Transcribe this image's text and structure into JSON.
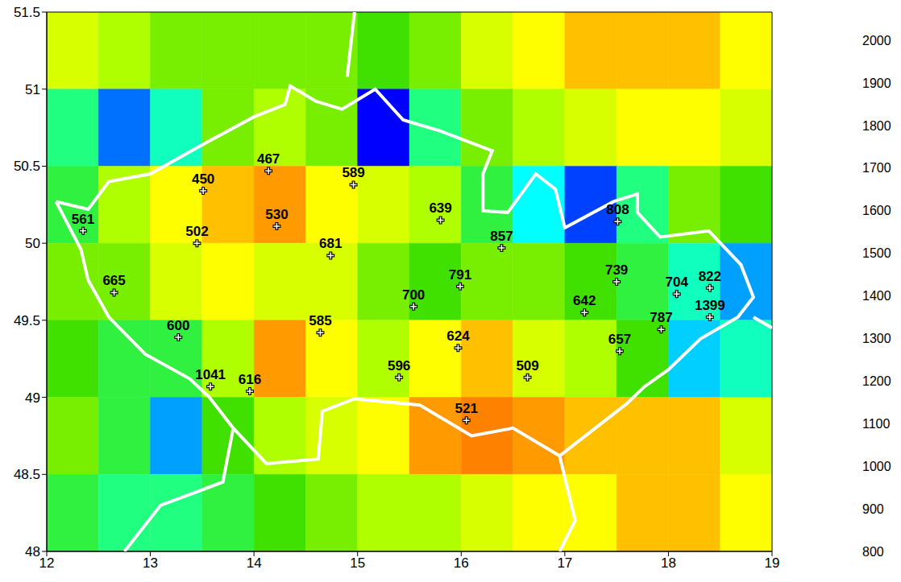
{
  "chart_data": {
    "type": "heatmap_scatter",
    "xlim": [
      12,
      19
    ],
    "xticks": [
      12,
      13,
      14,
      15,
      16,
      17,
      18,
      19
    ],
    "ylim": [
      48,
      51.5
    ],
    "yticks": [
      48,
      48.5,
      49,
      49.5,
      50,
      50.5,
      51,
      51.5
    ],
    "heatmap": {
      "x_edges": [
        12,
        12.5,
        13,
        13.5,
        14,
        14.5,
        15,
        15.5,
        16,
        16.5,
        17,
        17.5,
        18,
        18.5,
        19
      ],
      "y_edges": [
        51.5,
        51,
        50.5,
        50,
        49.5,
        49,
        48.5,
        48
      ],
      "z": [
        [
          1050,
          1100,
          1150,
          1150,
          1150,
          1150,
          1200,
          1150,
          1050,
          1000,
          950,
          950,
          950,
          1000
        ],
        [
          1300,
          1550,
          1350,
          1150,
          1100,
          1150,
          1700,
          1300,
          1150,
          1100,
          1050,
          1000,
          1000,
          1050
        ],
        [
          1250,
          1100,
          1000,
          950,
          920,
          1000,
          1050,
          1100,
          1250,
          1400,
          1600,
          1300,
          1150,
          1200
        ],
        [
          1150,
          1150,
          1050,
          1000,
          1050,
          1050,
          1150,
          1200,
          1150,
          1150,
          1200,
          1250,
          1350,
          1500
        ],
        [
          1200,
          1250,
          1250,
          1100,
          920,
          1000,
          1100,
          1000,
          950,
          1050,
          1100,
          1200,
          1450,
          1350
        ],
        [
          1150,
          1250,
          1500,
          1200,
          1100,
          1050,
          1000,
          920,
          900,
          920,
          950,
          950,
          950,
          1050
        ],
        [
          1250,
          1300,
          1300,
          1250,
          1200,
          1150,
          1100,
          1100,
          1050,
          1000,
          1000,
          950,
          950,
          1000
        ]
      ]
    },
    "colorbar": {
      "range": [
        800,
        2000
      ],
      "ticks": [
        800,
        900,
        1000,
        1100,
        1200,
        1300,
        1400,
        1500,
        1600,
        1700,
        1800,
        1900,
        2000
      ]
    },
    "points": {
      "x": [
        12.35,
        12.65,
        13.51,
        13.45,
        14.14,
        14.22,
        14.96,
        14.74,
        13.27,
        14.64,
        13.58,
        13.96,
        15.8,
        16.39,
        15.99,
        15.54,
        15.97,
        15.4,
        16.64,
        16.05,
        17.51,
        17.5,
        17.19,
        17.53,
        17.93,
        18.08,
        18.4,
        18.4
      ],
      "y": [
        50.08,
        49.68,
        50.34,
        50.0,
        50.47,
        50.11,
        50.38,
        49.92,
        49.39,
        49.42,
        49.07,
        49.04,
        50.15,
        49.97,
        49.72,
        49.59,
        49.32,
        49.13,
        49.13,
        48.85,
        50.14,
        49.75,
        49.55,
        49.3,
        49.44,
        49.67,
        49.71,
        49.52
      ],
      "values": [
        561,
        665,
        450,
        502,
        467,
        530,
        589,
        681,
        600,
        585,
        1041,
        616,
        639,
        857,
        791,
        700,
        624,
        596,
        509,
        521,
        808,
        739,
        642,
        657,
        787,
        704,
        822,
        1399
      ],
      "data_labels": true,
      "marker": "cross"
    },
    "borders": [
      {
        "color": "#ffffff",
        "x": [
          12.09,
          12.4,
          12.6,
          13.0,
          13.45,
          14.0,
          14.3,
          14.35,
          14.6,
          14.85,
          15.17,
          15.44,
          15.79,
          16.3,
          16.21,
          16.21,
          16.45,
          16.72,
          16.91,
          17.0,
          17.47,
          17.7,
          17.7,
          17.92,
          18.39,
          18.7,
          18.82,
          18.67,
          18.31,
          18.0,
          17.77,
          17.6,
          16.95,
          16.5,
          16.1,
          15.6,
          14.97,
          14.66,
          14.62,
          14.12,
          13.8,
          13.57,
          13.38,
          12.95,
          12.6,
          12.4,
          12.33,
          12.09
        ],
        "y": [
          50.27,
          50.22,
          50.4,
          50.45,
          50.62,
          50.82,
          50.9,
          51.02,
          50.92,
          50.87,
          51.0,
          50.8,
          50.73,
          50.6,
          50.45,
          50.21,
          50.2,
          50.45,
          50.35,
          50.1,
          50.27,
          50.32,
          50.2,
          50.04,
          50.08,
          49.86,
          49.65,
          49.52,
          49.38,
          49.18,
          49.07,
          48.96,
          48.62,
          48.8,
          48.75,
          48.95,
          48.99,
          48.91,
          48.6,
          48.57,
          48.8,
          49.0,
          49.12,
          49.28,
          49.52,
          49.76,
          49.96,
          50.27
        ]
      },
      {
        "color": "#ffffff",
        "x": [
          14.9,
          14.97
        ],
        "y": [
          51.08,
          51.5
        ]
      },
      {
        "color": "#ffffff",
        "x": [
          18.82,
          19.0
        ],
        "y": [
          49.52,
          49.45
        ]
      },
      {
        "color": "#ffffff",
        "x": [
          16.95,
          17.1,
          16.95
        ],
        "y": [
          48.62,
          48.2,
          48.0
        ]
      },
      {
        "color": "#ffffff",
        "x": [
          13.8,
          13.7,
          13.1,
          12.75
        ],
        "y": [
          48.8,
          48.45,
          48.3,
          48.0
        ]
      }
    ]
  }
}
